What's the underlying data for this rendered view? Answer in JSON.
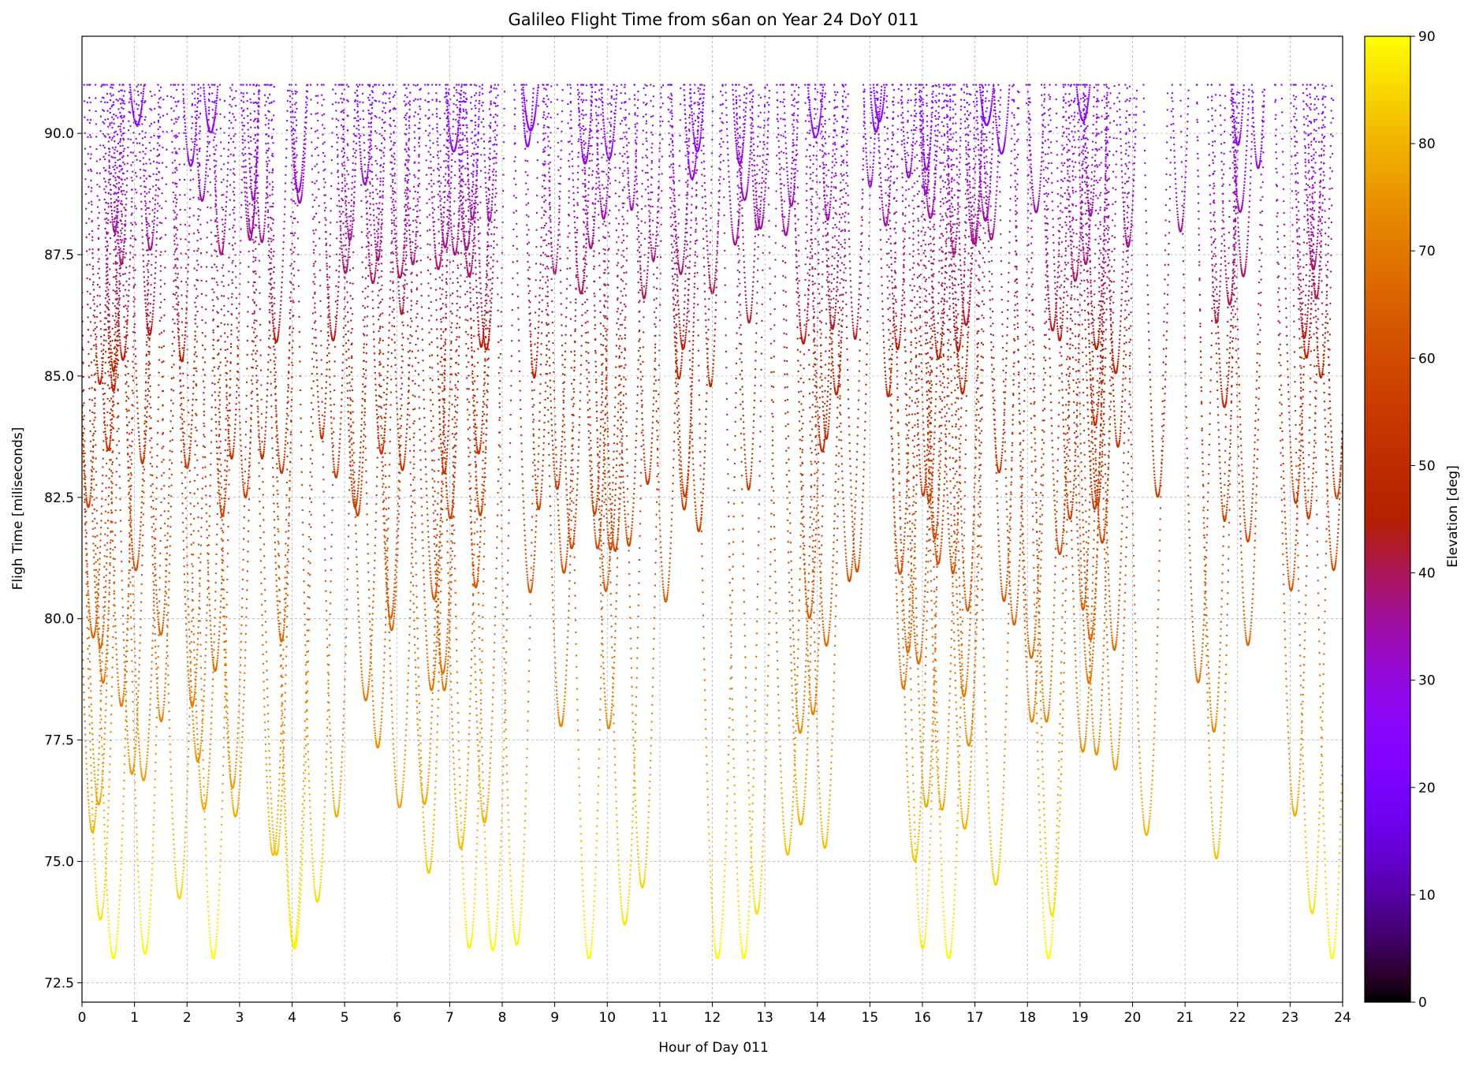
{
  "chart_data": {
    "type": "scatter",
    "title": "Galileo Flight Time from s6an on Year 24 DoY 011",
    "xlabel": "Hour of Day 011",
    "ylabel": "Fligh Time [miliseconds]",
    "xlim": [
      0,
      24
    ],
    "ylim": [
      72.1,
      92.0
    ],
    "x_ticks": [
      "0",
      "1",
      "2",
      "3",
      "4",
      "5",
      "6",
      "7",
      "8",
      "9",
      "10",
      "11",
      "12",
      "13",
      "14",
      "15",
      "16",
      "17",
      "18",
      "19",
      "20",
      "21",
      "22",
      "23",
      "24"
    ],
    "y_ticks": [
      "72.5",
      "75.0",
      "77.5",
      "80.0",
      "82.5",
      "85.0",
      "87.5",
      "90.0"
    ],
    "grid": true,
    "colorbar": {
      "label": "Elevation [deg]",
      "colormap": "gnuplot",
      "range": [
        0,
        90
      ],
      "ticks": [
        "0",
        "10",
        "20",
        "30",
        "40",
        "50",
        "60",
        "70",
        "80",
        "90"
      ]
    },
    "marker": "dots",
    "series_description": "Per-satellite flight-time arcs versus hour of day, colored by elevation; U-shaped arcs reaching minima between about 73.0 and 90.3 ms and maxima near 91.0 ms.",
    "arc_minima_samples": [
      {
        "x": 0.12,
        "y": 82.3
      },
      {
        "x": 0.6,
        "y": 84.7
      },
      {
        "x": 0.75,
        "y": 87.3
      },
      {
        "x": 1.15,
        "y": 83.2
      },
      {
        "x": 1.3,
        "y": 87.6
      },
      {
        "x": 1.9,
        "y": 85.3
      },
      {
        "x": 2.0,
        "y": 83.1
      },
      {
        "x": 2.65,
        "y": 87.5
      },
      {
        "x": 3.2,
        "y": 87.8
      },
      {
        "x": 3.7,
        "y": 85.7
      },
      {
        "x": 3.8,
        "y": 83.0
      },
      {
        "x": 5.1,
        "y": 87.8
      },
      {
        "x": 5.7,
        "y": 83.4
      },
      {
        "x": 6.3,
        "y": 87.3
      },
      {
        "x": 7.1,
        "y": 87.5
      },
      {
        "x": 7.6,
        "y": 85.6
      },
      {
        "x": 7.55,
        "y": 83.4
      },
      {
        "x": 9.0,
        "y": 87.1
      },
      {
        "x": 9.5,
        "y": 86.7
      },
      {
        "x": 10.7,
        "y": 86.6
      },
      {
        "x": 11.4,
        "y": 87.1
      },
      {
        "x": 12.0,
        "y": 86.7
      },
      {
        "x": 12.7,
        "y": 86.1
      },
      {
        "x": 13.4,
        "y": 87.9
      },
      {
        "x": 15.3,
        "y": 88.1
      },
      {
        "x": 16.6,
        "y": 87.5
      },
      {
        "x": 17.2,
        "y": 88.2
      },
      {
        "x": 19.2,
        "y": 88.3
      },
      {
        "x": 21.6,
        "y": 86.1
      },
      {
        "x": 23.5,
        "y": 86.6
      },
      {
        "x": 0.35,
        "y": 79.4
      },
      {
        "x": 0.75,
        "y": 78.2
      },
      {
        "x": 0.95,
        "y": 76.8
      },
      {
        "x": 0.2,
        "y": 75.6
      },
      {
        "x": 0.35,
        "y": 73.8
      },
      {
        "x": 0.6,
        "y": 73.0
      },
      {
        "x": 1.2,
        "y": 73.1
      },
      {
        "x": 2.5,
        "y": 73.0
      },
      {
        "x": 4.05,
        "y": 73.2
      },
      {
        "x": 9.65,
        "y": 73.0
      },
      {
        "x": 12.1,
        "y": 73.0
      },
      {
        "x": 12.6,
        "y": 73.0
      },
      {
        "x": 16.5,
        "y": 73.0
      },
      {
        "x": 18.4,
        "y": 73.0
      },
      {
        "x": 23.8,
        "y": 73.0
      }
    ]
  }
}
